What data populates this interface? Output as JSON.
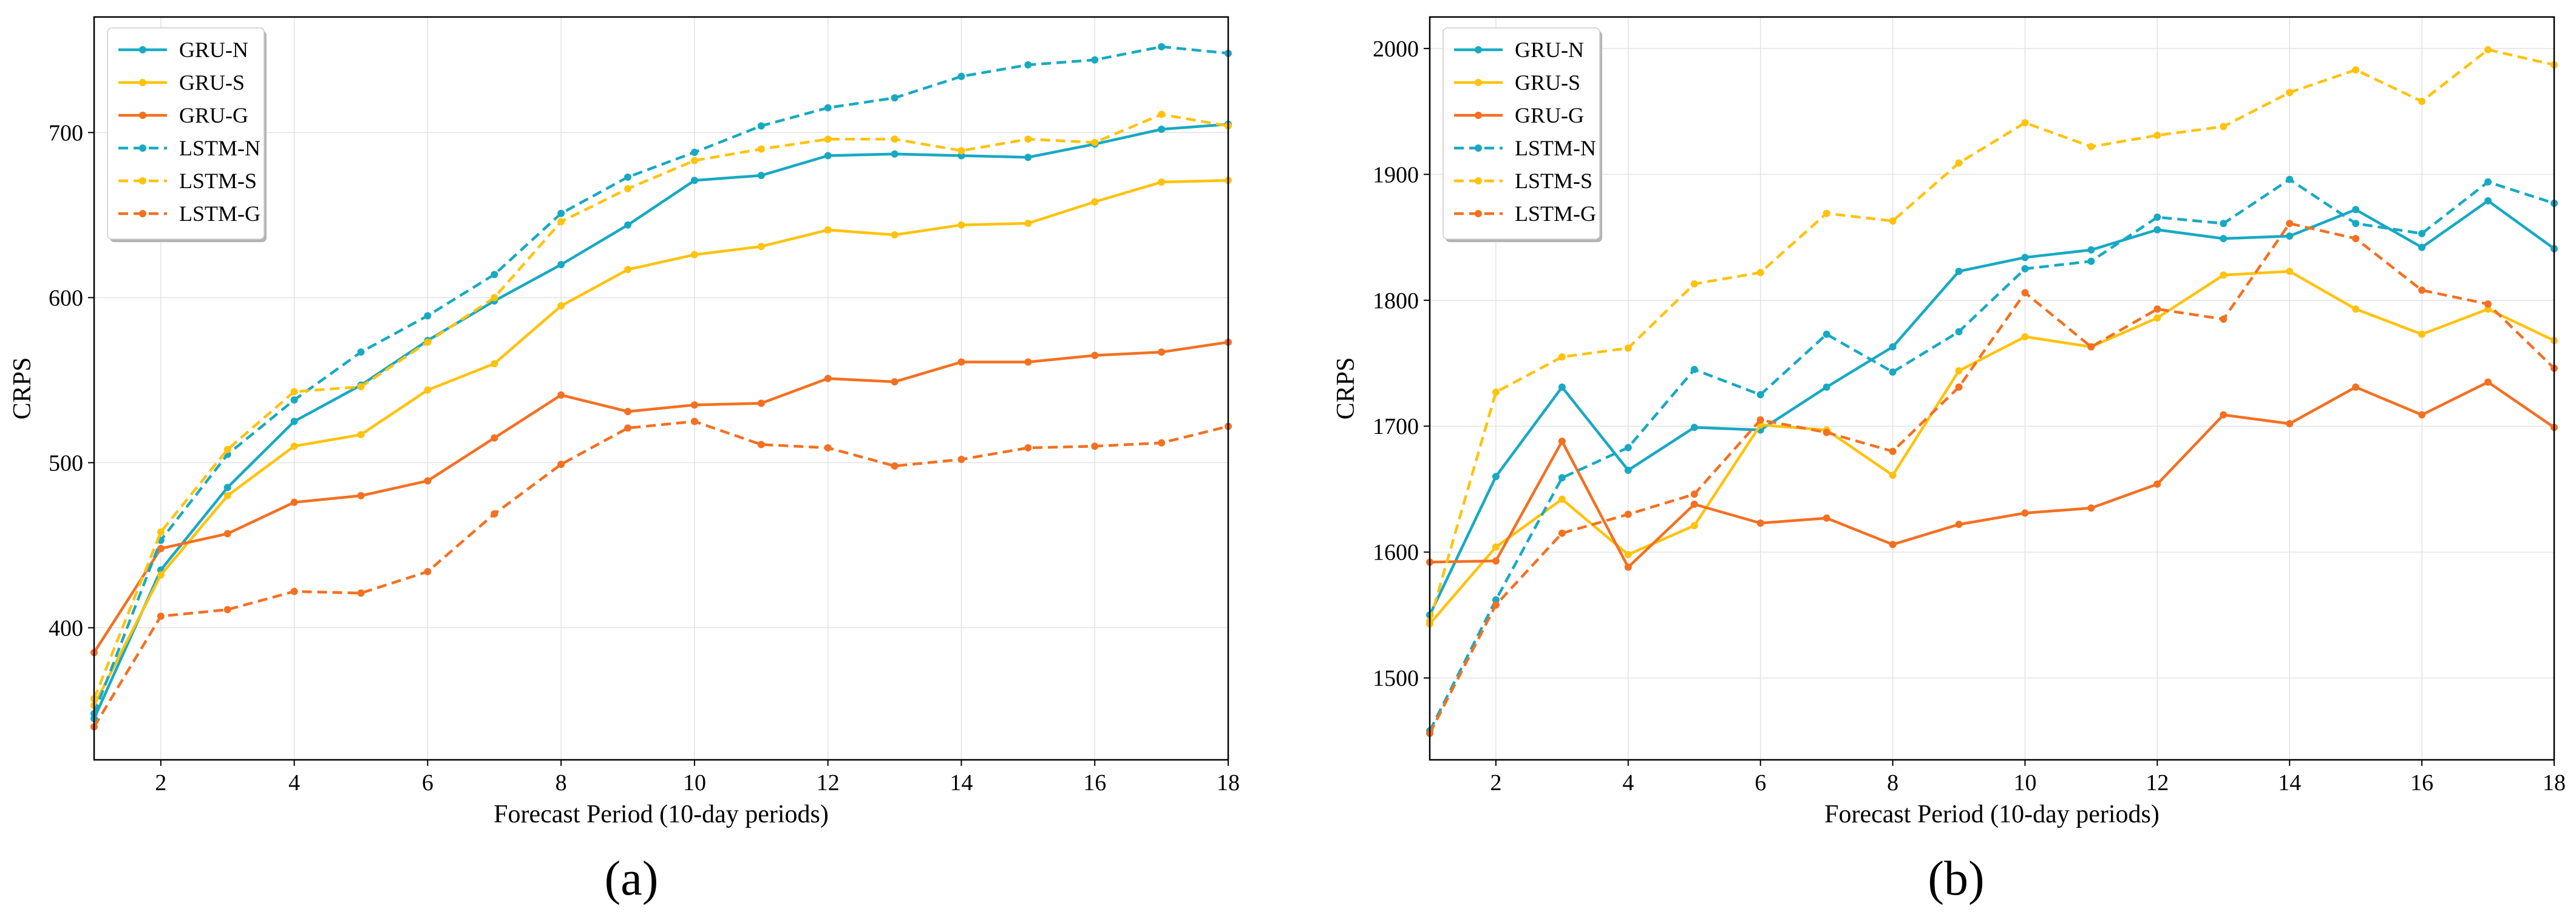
{
  "chart_data": [
    {
      "type": "line",
      "panel_label": "(a)",
      "xlabel": "Forecast Period (10-day periods)",
      "ylabel": "CRPS",
      "xlim": [
        1,
        18
      ],
      "ylim": [
        320,
        770
      ],
      "xticks": [
        2,
        4,
        6,
        8,
        10,
        12,
        14,
        16,
        18
      ],
      "yticks": [
        400,
        500,
        600,
        700
      ],
      "grid": true,
      "legend_position": "top-left",
      "x": [
        1,
        2,
        3,
        4,
        5,
        6,
        7,
        8,
        9,
        10,
        11,
        12,
        13,
        14,
        15,
        16,
        17,
        18
      ],
      "series": [
        {
          "name": "GRU-N",
          "color": "#17a9c3",
          "linestyle": "solid",
          "values": [
            345,
            435,
            485,
            525,
            547,
            574,
            598,
            620,
            644,
            671,
            674,
            686,
            687,
            686,
            685,
            693,
            702,
            705
          ]
        },
        {
          "name": "GRU-S",
          "color": "#ffc20e",
          "linestyle": "solid",
          "values": [
            353,
            432,
            480,
            510,
            517,
            544,
            560,
            595,
            617,
            626,
            631,
            641,
            638,
            644,
            645,
            658,
            670,
            671
          ]
        },
        {
          "name": "GRU-G",
          "color": "#f37021",
          "linestyle": "solid",
          "values": [
            385,
            448,
            457,
            476,
            480,
            489,
            515,
            541,
            531,
            535,
            536,
            551,
            549,
            561,
            561,
            565,
            567,
            573
          ]
        },
        {
          "name": "LSTM-N",
          "color": "#17a9c3",
          "linestyle": "dashed",
          "values": [
            348,
            453,
            505,
            538,
            567,
            589,
            614,
            651,
            673,
            688,
            704,
            715,
            721,
            734,
            741,
            744,
            752,
            748
          ]
        },
        {
          "name": "LSTM-S",
          "color": "#ffc20e",
          "linestyle": "dashed",
          "values": [
            357,
            458,
            508,
            543,
            546,
            573,
            600,
            646,
            666,
            683,
            690,
            696,
            696,
            689,
            696,
            694,
            711,
            704
          ]
        },
        {
          "name": "LSTM-G",
          "color": "#f37021",
          "linestyle": "dashed",
          "values": [
            340,
            407,
            411,
            422,
            421,
            434,
            469,
            499,
            521,
            525,
            511,
            509,
            498,
            502,
            509,
            510,
            512,
            522
          ]
        }
      ]
    },
    {
      "type": "line",
      "panel_label": "(b)",
      "xlabel": "Forecast Period (10-day periods)",
      "ylabel": "CRPS",
      "xlim": [
        1,
        18
      ],
      "ylim": [
        1435,
        2025
      ],
      "xticks": [
        2,
        4,
        6,
        8,
        10,
        12,
        14,
        16,
        18
      ],
      "yticks": [
        1500,
        1600,
        1700,
        1800,
        1900,
        2000
      ],
      "grid": true,
      "legend_position": "top-left",
      "x": [
        1,
        2,
        3,
        4,
        5,
        6,
        7,
        8,
        9,
        10,
        11,
        12,
        13,
        14,
        15,
        16,
        17,
        18
      ],
      "series": [
        {
          "name": "GRU-N",
          "color": "#17a9c3",
          "linestyle": "solid",
          "values": [
            1550,
            1660,
            1731,
            1665,
            1699,
            1697,
            1731,
            1763,
            1823,
            1834,
            1840,
            1856,
            1849,
            1851,
            1872,
            1842,
            1879,
            1841
          ]
        },
        {
          "name": "GRU-S",
          "color": "#ffc20e",
          "linestyle": "solid",
          "values": [
            1543,
            1604,
            1642,
            1598,
            1621,
            1701,
            1697,
            1661,
            1744,
            1771,
            1763,
            1786,
            1820,
            1823,
            1793,
            1773,
            1793,
            1768
          ]
        },
        {
          "name": "GRU-G",
          "color": "#f37021",
          "linestyle": "solid",
          "values": [
            1592,
            1593,
            1688,
            1588,
            1638,
            1623,
            1627,
            1606,
            1622,
            1631,
            1635,
            1654,
            1709,
            1702,
            1731,
            1709,
            1735,
            1699
          ]
        },
        {
          "name": "LSTM-N",
          "color": "#17a9c3",
          "linestyle": "dashed",
          "values": [
            1458,
            1562,
            1659,
            1683,
            1745,
            1725,
            1773,
            1743,
            1775,
            1825,
            1831,
            1866,
            1861,
            1896,
            1861,
            1853,
            1894,
            1877
          ]
        },
        {
          "name": "LSTM-S",
          "color": "#ffc20e",
          "linestyle": "dashed",
          "values": [
            1545,
            1727,
            1755,
            1762,
            1813,
            1822,
            1869,
            1863,
            1909,
            1941,
            1922,
            1931,
            1938,
            1965,
            1983,
            1958,
            1999,
            1987
          ]
        },
        {
          "name": "LSTM-G",
          "color": "#f37021",
          "linestyle": "dashed",
          "values": [
            1456,
            1558,
            1615,
            1630,
            1646,
            1705,
            1695,
            1680,
            1731,
            1806,
            1763,
            1793,
            1785,
            1861,
            1849,
            1808,
            1797,
            1746
          ]
        }
      ]
    }
  ]
}
